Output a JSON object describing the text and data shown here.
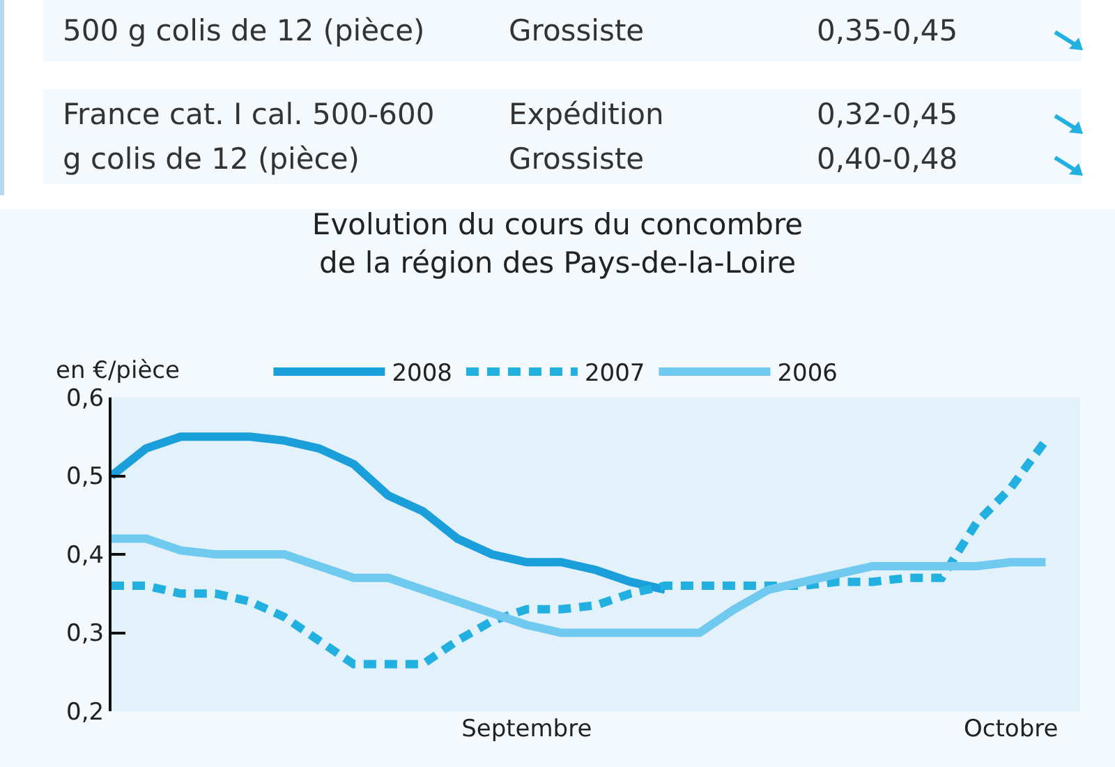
{
  "chart_data": {
    "type": "line",
    "title": "Evolution du cours du concombre\nde la région des Pays-de-la-Loire",
    "ylabel": "en €/pièce",
    "categories": [
      null,
      null,
      null,
      null,
      null,
      null,
      null,
      null,
      null,
      null,
      null,
      null,
      "Septembre",
      null,
      null,
      null,
      null,
      null,
      null,
      null,
      null,
      null,
      null,
      null,
      null,
      null,
      "Octobre",
      null
    ],
    "ylim": [
      0.2,
      0.6
    ],
    "yticks": [
      {
        "value": 0.2,
        "label": "0,2"
      },
      {
        "value": 0.3,
        "label": "0,3"
      },
      {
        "value": 0.4,
        "label": "0,4"
      },
      {
        "value": 0.5,
        "label": "0,5"
      },
      {
        "value": 0.6,
        "label": "0,6"
      }
    ],
    "grid": false,
    "legend": "top",
    "marker": "none",
    "annotations": [
      "500 g colis de 12 (pièce)",
      "Grossiste",
      "0,35-0,45",
      "France cat. I cal. 500-600 g colis de 12 (pièce)",
      "Expédition",
      "0,32-0,45",
      "Grossiste",
      "0,40-0,48"
    ],
    "series": [
      {
        "name": "2008",
        "color": "#1a9fdb",
        "line_style": "solid",
        "values": [
          0.5,
          0.535,
          0.55,
          0.55,
          0.55,
          0.545,
          0.535,
          0.515,
          0.475,
          0.455,
          0.42,
          0.4,
          0.39,
          0.39,
          0.38,
          0.365,
          0.355,
          null,
          null,
          null,
          null,
          null,
          null,
          null,
          null,
          null,
          null,
          null
        ]
      },
      {
        "name": "2007",
        "color": "#22b0e0",
        "line_style": "dashed",
        "values": [
          0.36,
          0.36,
          0.35,
          0.35,
          0.34,
          0.32,
          0.29,
          0.26,
          0.26,
          0.26,
          0.29,
          0.315,
          0.33,
          0.33,
          0.335,
          0.35,
          0.36,
          0.36,
          0.36,
          0.36,
          0.36,
          0.365,
          0.365,
          0.37,
          0.37,
          0.44,
          0.485,
          0.545
        ]
      },
      {
        "name": "2006",
        "color": "#70c9ef",
        "line_style": "solid",
        "values": [
          0.42,
          0.42,
          0.405,
          0.4,
          0.4,
          0.4,
          0.385,
          0.37,
          0.37,
          0.355,
          0.34,
          0.325,
          0.31,
          0.3,
          0.3,
          0.3,
          0.3,
          0.3,
          0.33,
          0.355,
          0.365,
          0.375,
          0.385,
          0.385,
          0.385,
          0.385,
          0.39,
          0.39
        ]
      }
    ]
  }
}
